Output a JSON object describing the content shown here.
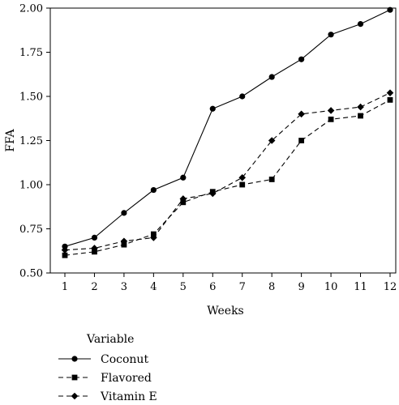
{
  "chart_data": {
    "type": "line",
    "xlabel": "Weeks",
    "ylabel": "FFA",
    "xlim": [
      1,
      12
    ],
    "ylim": [
      0.5,
      2.0
    ],
    "x": [
      1,
      2,
      3,
      4,
      5,
      6,
      7,
      8,
      9,
      10,
      11,
      12
    ],
    "x_ticks": [
      "1",
      "2",
      "3",
      "4",
      "5",
      "6",
      "7",
      "8",
      "9",
      "10",
      "11",
      "12"
    ],
    "y_ticks": [
      "0.50",
      "0.75",
      "1.00",
      "1.25",
      "1.50",
      "1.75",
      "2.00"
    ],
    "grid": false,
    "legend_title": "Variable",
    "legend_position": "bottom-left",
    "series": [
      {
        "name": "Coconut",
        "marker": "circle",
        "line": "solid",
        "values": [
          0.65,
          0.7,
          0.84,
          0.97,
          1.04,
          1.43,
          1.5,
          1.61,
          1.71,
          1.85,
          1.91,
          1.99
        ]
      },
      {
        "name": "Flavored",
        "marker": "square",
        "line": "dashed",
        "values": [
          0.6,
          0.62,
          0.66,
          0.72,
          0.9,
          0.96,
          1.0,
          1.03,
          1.25,
          1.37,
          1.39,
          1.48
        ]
      },
      {
        "name": "Vitamin E",
        "marker": "diamond",
        "line": "dashed",
        "values": [
          0.63,
          0.64,
          0.68,
          0.7,
          0.92,
          0.95,
          1.04,
          1.25,
          1.4,
          1.42,
          1.44,
          1.52
        ]
      }
    ],
    "colors": {
      "ink": "#000000",
      "background": "#ffffff"
    }
  }
}
